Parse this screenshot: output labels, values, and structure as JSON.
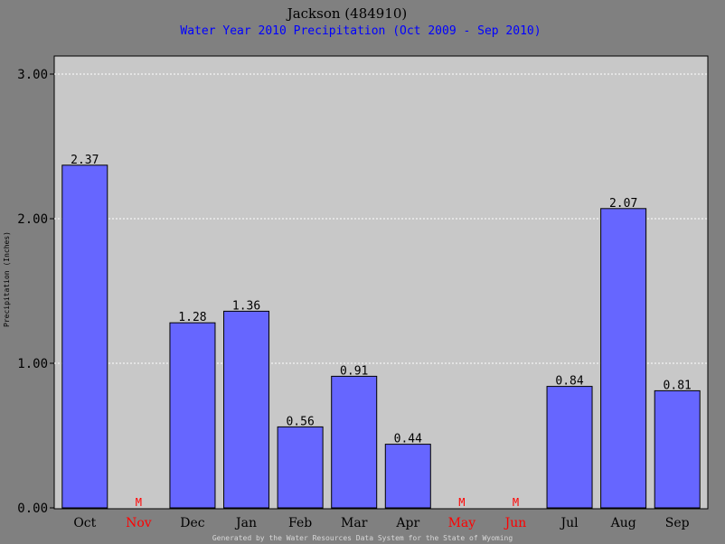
{
  "colors": {
    "background": "#808080",
    "plot_area": "#c8c8c8",
    "bar_fill": "#6666ff",
    "bar_stroke": "#000000",
    "subtitle": "#0000ff",
    "missing": "#ff0000",
    "footer": "#d8d8d8",
    "grid": "#ffffff"
  },
  "chart_data": {
    "type": "bar",
    "title": "Jackson (484910)",
    "subtitle": "Water Year 2010 Precipitation (Oct 2009 - Sep 2010)",
    "xlabel": "",
    "ylabel": "Precipitation (Inches)",
    "ylim": [
      0,
      3.0
    ],
    "yticks": [
      "0.00",
      "1.00",
      "2.00",
      "3.00"
    ],
    "grid": true,
    "categories": [
      "Oct",
      "Nov",
      "Dec",
      "Jan",
      "Feb",
      "Mar",
      "Apr",
      "May",
      "Jun",
      "Jul",
      "Aug",
      "Sep"
    ],
    "values": [
      2.37,
      null,
      1.28,
      1.36,
      0.56,
      0.91,
      0.44,
      null,
      null,
      0.84,
      2.07,
      0.81
    ],
    "value_labels": [
      "2.37",
      "M",
      "1.28",
      "1.36",
      "0.56",
      "0.91",
      "0.44",
      "M",
      "M",
      "0.84",
      "2.07",
      "0.81"
    ],
    "missing_marker": "M"
  },
  "footer": "Generated by the Water Resources Data System for the State of Wyoming"
}
